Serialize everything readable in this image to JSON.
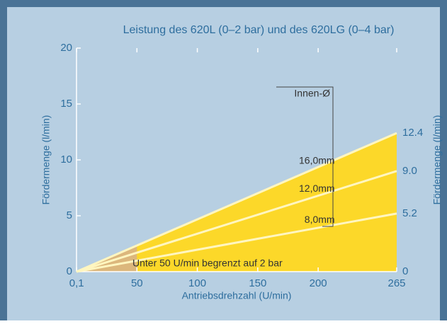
{
  "chart_data": {
    "type": "line",
    "title": "Leistung des 620L (0–2 bar) und des 620LG (0–4 bar)",
    "xlabel": "Antriebsdrehzahl (U/min)",
    "ylabel": "Fördermenge (l/min)",
    "y2label": "Fördermenge (l/min)",
    "x": [
      0,
      265
    ],
    "series": [
      {
        "name": "16,0mm",
        "color": "#fff6c0",
        "values": [
          0,
          12.4
        ]
      },
      {
        "name": "12,0mm",
        "color": "#fff6c0",
        "values": [
          0,
          9.0
        ]
      },
      {
        "name": "8,0mm",
        "color": "#fff6c0",
        "values": [
          0,
          5.2
        ]
      }
    ],
    "fill_color": "#fcd829",
    "highlight_xlim": [
      0,
      50
    ],
    "highlight_color": "#dcb77c",
    "xlim": [
      0,
      265
    ],
    "xticks": [
      {
        "value": 0.1,
        "label": "0,1"
      },
      50,
      100,
      150,
      200,
      265
    ],
    "ylim": [
      0,
      20
    ],
    "yticks": [
      0,
      5,
      10,
      15,
      20
    ],
    "y2lim": [
      0,
      20
    ],
    "y2ticks": [
      0,
      5.2,
      {
        "value": 9,
        "label": "9.0"
      },
      12.4
    ],
    "annotations": [
      "Innen-Ø",
      "Unter 50 U/min begrenzt auf 2 bar"
    ]
  }
}
